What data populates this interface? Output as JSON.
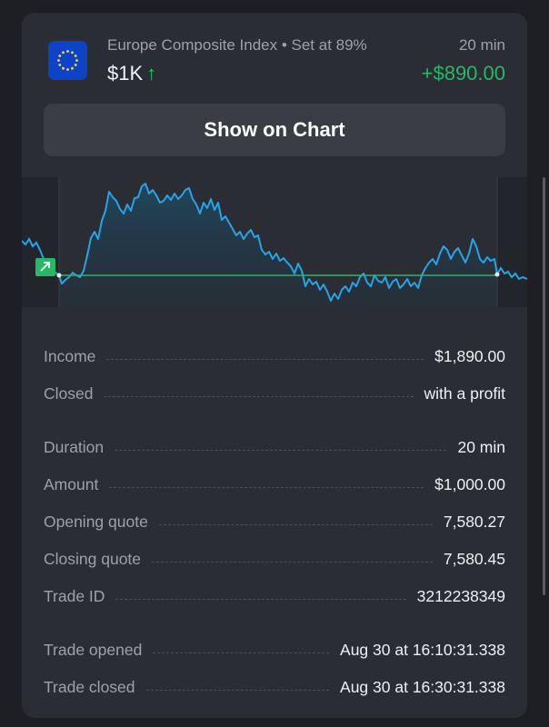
{
  "trade": {
    "asset_name": "Europe Composite Index • Set at 89%",
    "duration_label": "20 min",
    "amount": "$1K",
    "direction_glyph": "↑",
    "profit": "+$890.00"
  },
  "actions": {
    "show_chart_label": "Show on Chart"
  },
  "colors": {
    "accent_green": "#27b867",
    "line_blue": "#27a3e8",
    "card_bg": "#2a2d34"
  },
  "details": [
    {
      "label": "Income",
      "value": "$1,890.00"
    },
    {
      "label": "Closed",
      "value": "with a profit"
    },
    {
      "label": "Duration",
      "value": "20 min"
    },
    {
      "label": "Amount",
      "value": "$1,000.00"
    },
    {
      "label": "Opening quote",
      "value": "7,580.27"
    },
    {
      "label": "Closing quote",
      "value": "7,580.45"
    },
    {
      "label": "Trade ID",
      "value": "3212238349"
    },
    {
      "label": "Trade opened",
      "value": "Aug 30 at 16:10:31.338"
    },
    {
      "label": "Trade closed",
      "value": "Aug 30 at 16:30:31.338"
    }
  ]
}
